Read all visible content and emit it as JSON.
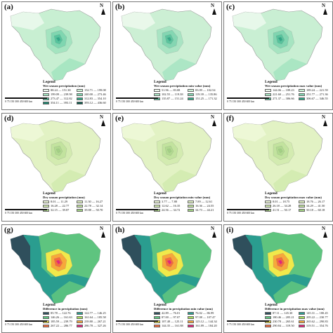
{
  "north_letter": "N",
  "scale": {
    "ticks": "0  75 150    300    450    600",
    "unit": "km"
  },
  "panels": [
    {
      "id": "a",
      "label": "(a)",
      "legend_title": "Legend",
      "legend_sub": "Wet season precipitation (mm)",
      "classes": [
        "88.24 — 151.38",
        "152.71 — 199.08",
        "199.09 — 239.98",
        "240.00 — 273.46",
        "273.47 — 312.82",
        "312.83 — 354.10",
        "354.11 — 393.11",
        "393.12 — 436.60"
      ],
      "colors": [
        "#eaf8ec",
        "#c8efd2",
        "#a4e4c0",
        "#7fd6b0",
        "#55c49d",
        "#2fa988",
        "#1c8670",
        "#0d5a4d"
      ]
    },
    {
      "id": "b",
      "label": "(b)",
      "legend_title": "Legend",
      "legend_sub": "Wet season precipitation min value (mm)",
      "classes": [
        "51.96 — 83.08",
        "83.09 — 102.54",
        "102.55 — 119.38",
        "119.39 — 135.86",
        "135.87 — 151.24",
        "151.25 — 171.32"
      ],
      "colors": [
        "#ecf8ec",
        "#ccefd4",
        "#a9e4c3",
        "#84d6b2",
        "#5bc59e",
        "#36aa89"
      ]
    },
    {
      "id": "c",
      "label": "(c)",
      "legend_title": "Legend",
      "legend_sub": "Wet season precipitation max value (mm)",
      "classes": [
        "144.06 — 189.23",
        "189.24 — 221.59",
        "221.60 — 251.76",
        "251.77 — 271.36",
        "271.37 — 306.66",
        "306.67 — 346.55"
      ],
      "colors": [
        "#eaf8ec",
        "#c9efd3",
        "#a6e4c1",
        "#80d5b0",
        "#57c39c",
        "#2ea786"
      ]
    },
    {
      "id": "d",
      "label": "(d)",
      "legend_title": "Legend",
      "legend_sub": "Dry season precipitation (mm)",
      "classes": [
        "8.01 — 11.29",
        "11.30 — 16.27",
        "16.28 — 22.77",
        "22.78 — 32.14",
        "32.15 — 39.87",
        "39.88 — 50.70"
      ],
      "colors": [
        "#eef8d8",
        "#e2f2c4",
        "#d3ebb0",
        "#c2e39e",
        "#b1da8f",
        "#a2d183"
      ]
    },
    {
      "id": "e",
      "label": "(e)",
      "legend_title": "Legend",
      "legend_sub": "Dry season precipitation min value (mm)",
      "classes": [
        "3.77 — 7.88",
        "7.89 — 12.61",
        "12.62 — 16.35",
        "16.36 — 24.55",
        "24.56 — 34.72",
        "34.73 — 44.21"
      ],
      "colors": [
        "#eef8d8",
        "#e2f2c4",
        "#d3ebb0",
        "#c2e39e",
        "#b1da8f",
        "#a2d183"
      ]
    },
    {
      "id": "f",
      "label": "(f)",
      "legend_title": "Legend",
      "legend_sub": "Dry season precipitation max value (mm)",
      "classes": [
        "8.01 — 18.75",
        "18.76 — 26.17",
        "26.18 — 34.28",
        "34.29 — 41.50",
        "41.51 — 50.17",
        "50.18 — 60.18"
      ],
      "colors": [
        "#eef8d8",
        "#e2f2c4",
        "#d3ebb0",
        "#c2e39e",
        "#b1da8f",
        "#a2d183"
      ]
    },
    {
      "id": "g",
      "label": "(g)",
      "legend_title": "Legend",
      "legend_sub": "Difference in precipitation (mm)",
      "classes": [
        "85.78 — 122.76",
        "122.77 — 146.25",
        "146.26 — 161.63",
        "161.64 — 185.58",
        "185.59 — 239.79",
        "239.80 — 267.21",
        "267.22 — 286.77",
        "286.78 — 327.26"
      ],
      "colors": [
        "#2f4f5c",
        "#2a9d8f",
        "#5ec47f",
        "#a6dc5b",
        "#f1e94a",
        "#f7a83a",
        "#f46a3c",
        "#e4237a"
      ]
    },
    {
      "id": "h",
      "label": "(h)",
      "legend_title": "Legend",
      "legend_sub": "Difference in precipitation min value (mm)",
      "classes": [
        "42.89 — 76.01",
        "76.02 — 86.99",
        "87.00 — 97.07",
        "97.08 — 107.47",
        "107.48 — 125.11",
        "125.12 — 144.34",
        "144.35 — 161.88",
        "161.89 — 184.20"
      ],
      "colors": [
        "#2f4f5c",
        "#2a9d8f",
        "#5ec47f",
        "#a6dc5b",
        "#f1e94a",
        "#f7a83a",
        "#f46a3c",
        "#e4237a"
      ]
    },
    {
      "id": "i",
      "label": "(i)",
      "legend_title": "Legend",
      "legend_sub": "Difference in precipitation max value (mm)",
      "classes": [
        "87.11 — 145.30",
        "145.31 — 180.45",
        "180.46 — 205.21",
        "205.22 — 230.77",
        "230.78 — 265.61",
        "265.62 — 290.83",
        "290.84 — 319.50",
        "319.51 — 354.76"
      ],
      "colors": [
        "#2f4f5c",
        "#2a9d8f",
        "#5ec47f",
        "#a6dc5b",
        "#f1e94a",
        "#f7a83a",
        "#f46a3c",
        "#e4237a"
      ]
    }
  ]
}
